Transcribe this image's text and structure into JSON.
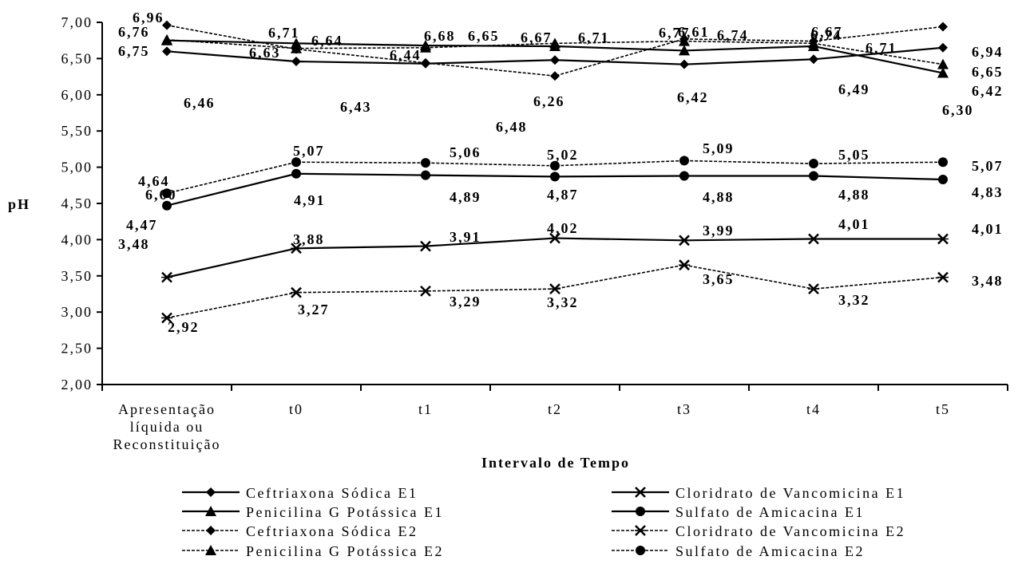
{
  "chart_data": {
    "type": "line",
    "title": "",
    "ylabel": "pH",
    "xlabel": "Intervalo de Tempo",
    "ylim": [
      2.0,
      7.0
    ],
    "yticks": [
      "2,00",
      "2,50",
      "3,00",
      "3,50",
      "4,00",
      "4,50",
      "5,00",
      "5,50",
      "6,00",
      "6,50",
      "7,00"
    ],
    "categories": [
      [
        "Apresentação",
        "líquida ou",
        "Reconstituição"
      ],
      [
        "t0"
      ],
      [
        "t1"
      ],
      [
        "t2"
      ],
      [
        "t3"
      ],
      [
        "t4"
      ],
      [
        "t5"
      ]
    ],
    "legend_position": "bottom",
    "series": [
      {
        "name": "Ceftriaxona Sódica E1",
        "marker": "diamond",
        "dashed": false,
        "values": [
          6.6,
          6.46,
          6.43,
          6.48,
          6.42,
          6.49,
          6.65
        ],
        "labels": [
          "6,60",
          "6,46",
          "6,43",
          "6,48",
          "6,42",
          "6,49",
          "6,65"
        ]
      },
      {
        "name": "Cloridrato de Vancomicina E1",
        "marker": "xstar",
        "dashed": false,
        "values": [
          3.48,
          3.88,
          3.91,
          4.02,
          3.99,
          4.01,
          4.01
        ],
        "labels": [
          "3,48",
          "3,88",
          "3,91",
          "4,02",
          "3,99",
          "4,01",
          "4,01"
        ]
      },
      {
        "name": "Penicilina G Potássica E1",
        "marker": "triangle",
        "dashed": false,
        "values": [
          6.75,
          6.71,
          6.68,
          6.67,
          6.61,
          6.67,
          6.3
        ],
        "labels": [
          "6,75",
          "6,71",
          "6,68",
          "6,67",
          "6,61",
          "6,67",
          "6,30"
        ]
      },
      {
        "name": "Sulfato de Amicacina E1",
        "marker": "circle",
        "dashed": false,
        "values": [
          4.47,
          4.91,
          4.89,
          4.87,
          4.88,
          4.88,
          4.83
        ],
        "labels": [
          "4,47",
          "4,91",
          "4,89",
          "4,87",
          "4,88",
          "4,88",
          "4,83"
        ]
      },
      {
        "name": "Ceftriaxona Sódica E2",
        "marker": "diamond",
        "dashed": true,
        "values": [
          6.96,
          6.63,
          6.44,
          6.26,
          6.77,
          6.74,
          6.94
        ],
        "labels": [
          "6,96",
          "6,63",
          "6,44",
          "6,26",
          "6,77",
          "6,74",
          "6,94"
        ]
      },
      {
        "name": "Cloridrato de Vancomicina E2",
        "marker": "xstar",
        "dashed": true,
        "values": [
          2.92,
          3.27,
          3.29,
          3.32,
          3.65,
          3.32,
          3.48
        ],
        "labels": [
          "2,92",
          "3,27",
          "3,29",
          "3,32",
          "3,65",
          "3,32",
          "3,48"
        ]
      },
      {
        "name": "Penicilina G Potássica E2",
        "marker": "triangle",
        "dashed": true,
        "values": [
          6.76,
          6.64,
          6.65,
          6.71,
          6.74,
          6.71,
          6.42
        ],
        "labels": [
          "6,76",
          "6,64",
          "6,65",
          "6,71",
          "6,74",
          "6,71",
          "6,42"
        ]
      },
      {
        "name": "Sulfato de Amicacina E2",
        "marker": "circle",
        "dashed": true,
        "values": [
          4.64,
          5.07,
          5.06,
          5.02,
          5.09,
          5.05,
          5.07
        ],
        "labels": [
          "4,64",
          "5,07",
          "5,06",
          "5,02",
          "5,09",
          "5,05",
          "5,07"
        ]
      }
    ]
  }
}
